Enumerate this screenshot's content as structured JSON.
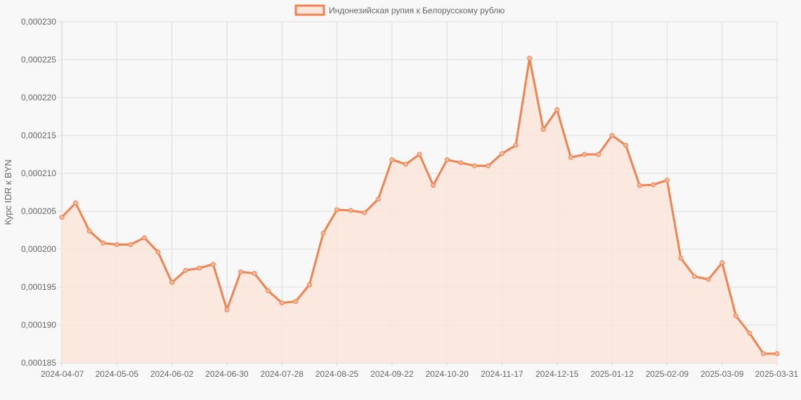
{
  "chart_data": {
    "type": "line",
    "ylabel": "Курс IDR к BYN",
    "legend_position": "top-center",
    "grid": true,
    "line_color": "#f0834f",
    "fill_color": "#fbe6dc",
    "ylim": [
      0.000185,
      0.00023
    ],
    "y_ticks": [
      "0,000185",
      "0,000190",
      "0,000195",
      "0,000200",
      "0,000205",
      "0,000210",
      "0,000215",
      "0,000220",
      "0,000225",
      "0,000230"
    ],
    "x_ticks": [
      "2024-04-07",
      "2024-05-05",
      "2024-06-02",
      "2024-06-30",
      "2024-07-28",
      "2024-08-25",
      "2024-09-22",
      "2024-10-20",
      "2024-11-17",
      "2024-12-15",
      "2025-01-12",
      "2025-02-09",
      "2025-03-09",
      "2025-03-31"
    ],
    "series": [
      {
        "name": "Индонезийская рупия к Белорусскому рублю",
        "values": [
          0.0002042,
          0.0002061,
          0.0002024,
          0.0002008,
          0.0002006,
          0.0002006,
          0.0002015,
          0.0001996,
          0.0001956,
          0.0001972,
          0.0001975,
          0.000198,
          0.000192,
          0.000197,
          0.0001968,
          0.0001945,
          0.0001929,
          0.0001931,
          0.0001953,
          0.0002021,
          0.0002052,
          0.0002051,
          0.0002048,
          0.0002066,
          0.0002118,
          0.0002112,
          0.0002125,
          0.0002084,
          0.0002118,
          0.0002114,
          0.000211,
          0.000211,
          0.0002126,
          0.0002137,
          0.0002252,
          0.0002158,
          0.0002184,
          0.0002121,
          0.0002125,
          0.0002125,
          0.000215,
          0.0002137,
          0.0002084,
          0.0002085,
          0.0002091,
          0.0001988,
          0.0001964,
          0.000196,
          0.0001982,
          0.0001912,
          0.0001889,
          0.0001862,
          0.0001862
        ]
      }
    ]
  }
}
